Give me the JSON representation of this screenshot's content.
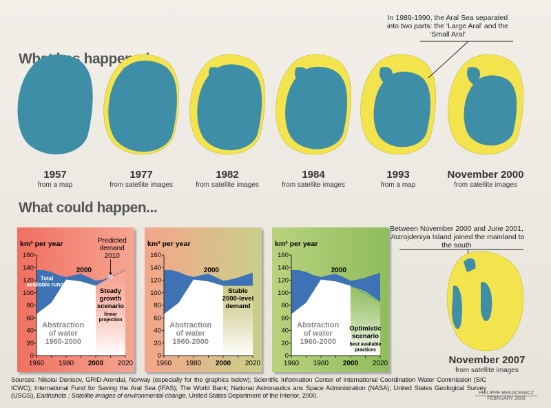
{
  "titles": {
    "past": "What has happened...",
    "future": "What could happen..."
  },
  "maps": [
    {
      "year": "1957",
      "source": "from a map",
      "shrink": 0
    },
    {
      "year": "1977",
      "source": "from satellite images",
      "shrink": 0.25
    },
    {
      "year": "1982",
      "source": "from satellite images",
      "shrink": 0.4
    },
    {
      "year": "1984",
      "source": "from satellite images",
      "shrink": 0.5
    },
    {
      "year": "1993",
      "source": "from a map",
      "shrink": 0.7
    },
    {
      "year": "November 2000",
      "source": "from satellite images",
      "shrink": 0.85
    }
  ],
  "callouts": {
    "split": "In 1989-1990, the Aral Sea separated into two parts: the ‘Large Aral’ and the ‘Small Aral’",
    "island": "Between November 2000 and June 2001, Vozrojdeniya Island joined the mainland to the south"
  },
  "map_2007": {
    "year": "November 2007",
    "source": "from satellite images"
  },
  "colors": {
    "water": "#3f8ea8",
    "dry": "#f3e34c",
    "runoff": "#3d72b4"
  },
  "chart_data": [
    {
      "type": "area",
      "ylabel": "km³ per year",
      "ylim": [
        0,
        160
      ],
      "yticks": [
        0,
        20,
        40,
        60,
        80,
        100,
        120,
        140,
        160
      ],
      "xticks": [
        1960,
        1980,
        2000,
        2020
      ],
      "xlim": [
        1960,
        2020
      ],
      "runoff": {
        "x": [
          1960,
          1965,
          1970,
          1975,
          1980,
          1985,
          1990,
          1995,
          2000,
          2005,
          2010
        ],
        "y": [
          136,
          136,
          133,
          128,
          125,
          128,
          130,
          125,
          119,
          121,
          125
        ]
      },
      "abstraction": {
        "x": [
          1960,
          1970,
          1980,
          1990,
          2000
        ],
        "y": [
          66,
          84,
          121,
          118,
          111
        ]
      },
      "projection": {
        "x": [
          2000,
          2010,
          2020
        ],
        "y": [
          111,
          125,
          136
        ]
      },
      "labels": {
        "runoff": "Total available runoff",
        "abstraction": [
          "Abstraction",
          "of water",
          "1960-2000"
        ],
        "year": "2000",
        "predicted": [
          "Predicted",
          "demand",
          "2010"
        ],
        "scenario": [
          "Steady",
          "growth",
          "scenario"
        ],
        "scenario_sub": [
          "linear",
          "projection"
        ]
      },
      "bg": [
        "#f07060",
        "#f6a592"
      ]
    },
    {
      "type": "area",
      "ylabel": "km³ per year",
      "ylim": [
        0,
        160
      ],
      "yticks": [
        0,
        20,
        40,
        60,
        80,
        100,
        120,
        140,
        160
      ],
      "xticks": [
        1960,
        1980,
        2000,
        2020
      ],
      "xlim": [
        1960,
        2020
      ],
      "runoff": {
        "x": [
          1960,
          1965,
          1970,
          1975,
          1980,
          1985,
          1990,
          1995,
          2000,
          2005,
          2010,
          2015,
          2020
        ],
        "y": [
          136,
          136,
          133,
          128,
          125,
          128,
          130,
          125,
          119,
          121,
          124,
          128,
          132
        ]
      },
      "abstraction": {
        "x": [
          1960,
          1970,
          1980,
          1990,
          2000
        ],
        "y": [
          66,
          84,
          121,
          118,
          111
        ]
      },
      "projection": {
        "x": [
          2000,
          2020
        ],
        "y": [
          111,
          111
        ]
      },
      "labels": {
        "abstraction": [
          "Abstraction",
          "of water",
          "1960-2000"
        ],
        "year": "2000",
        "scenario": [
          "Stable",
          "2000-level",
          "demand"
        ],
        "scenario_sub": []
      },
      "bg": [
        "#f4a58a",
        "#c9cf8a"
      ]
    },
    {
      "type": "area",
      "ylabel": "km³ per year",
      "ylim": [
        0,
        160
      ],
      "yticks": [
        0,
        20,
        40,
        60,
        80,
        100,
        120,
        140,
        160
      ],
      "xticks": [
        1960,
        1980,
        2000,
        2020
      ],
      "xlim": [
        1960,
        2020
      ],
      "runoff": {
        "x": [
          1960,
          1965,
          1970,
          1975,
          1980,
          1985,
          1990,
          1995,
          2000,
          2005,
          2010,
          2015,
          2020
        ],
        "y": [
          136,
          136,
          133,
          128,
          125,
          128,
          130,
          125,
          119,
          121,
          124,
          128,
          132
        ]
      },
      "abstraction": {
        "x": [
          1960,
          1970,
          1980,
          1990,
          2000
        ],
        "y": [
          66,
          84,
          121,
          118,
          111
        ]
      },
      "projection": {
        "x": [
          2000,
          2010,
          2020
        ],
        "y": [
          111,
          102,
          86
        ]
      },
      "labels": {
        "abstraction": [
          "Abstraction",
          "of water",
          "1960-2000"
        ],
        "year": "2000",
        "scenario": [
          "Optimistic",
          "scenario"
        ],
        "scenario_sub": [
          "best available",
          "practices"
        ]
      },
      "bg": [
        "#b9d27e",
        "#8fbd5c"
      ]
    }
  ],
  "sources": {
    "line1": "Sources: Nikolai Denisov, GRID-Arendal, Norway (especially for the graphics below); Scientific Information Center of International Coordination Water Commission (SIC ICWC); International Fund for Saving the Aral Sea (IFAS); The World Bank; National Astronautics ans Space Administration (NASA); United States Geological Survey (USGS), ",
    "italic": "Earthshots : Satellite images of environmental change",
    "line2": ", United States Department of the Interior, 2000."
  },
  "credit": {
    "author": "PHILIPPE REKACEWICZ",
    "date": "FEBRUARY 2008"
  }
}
